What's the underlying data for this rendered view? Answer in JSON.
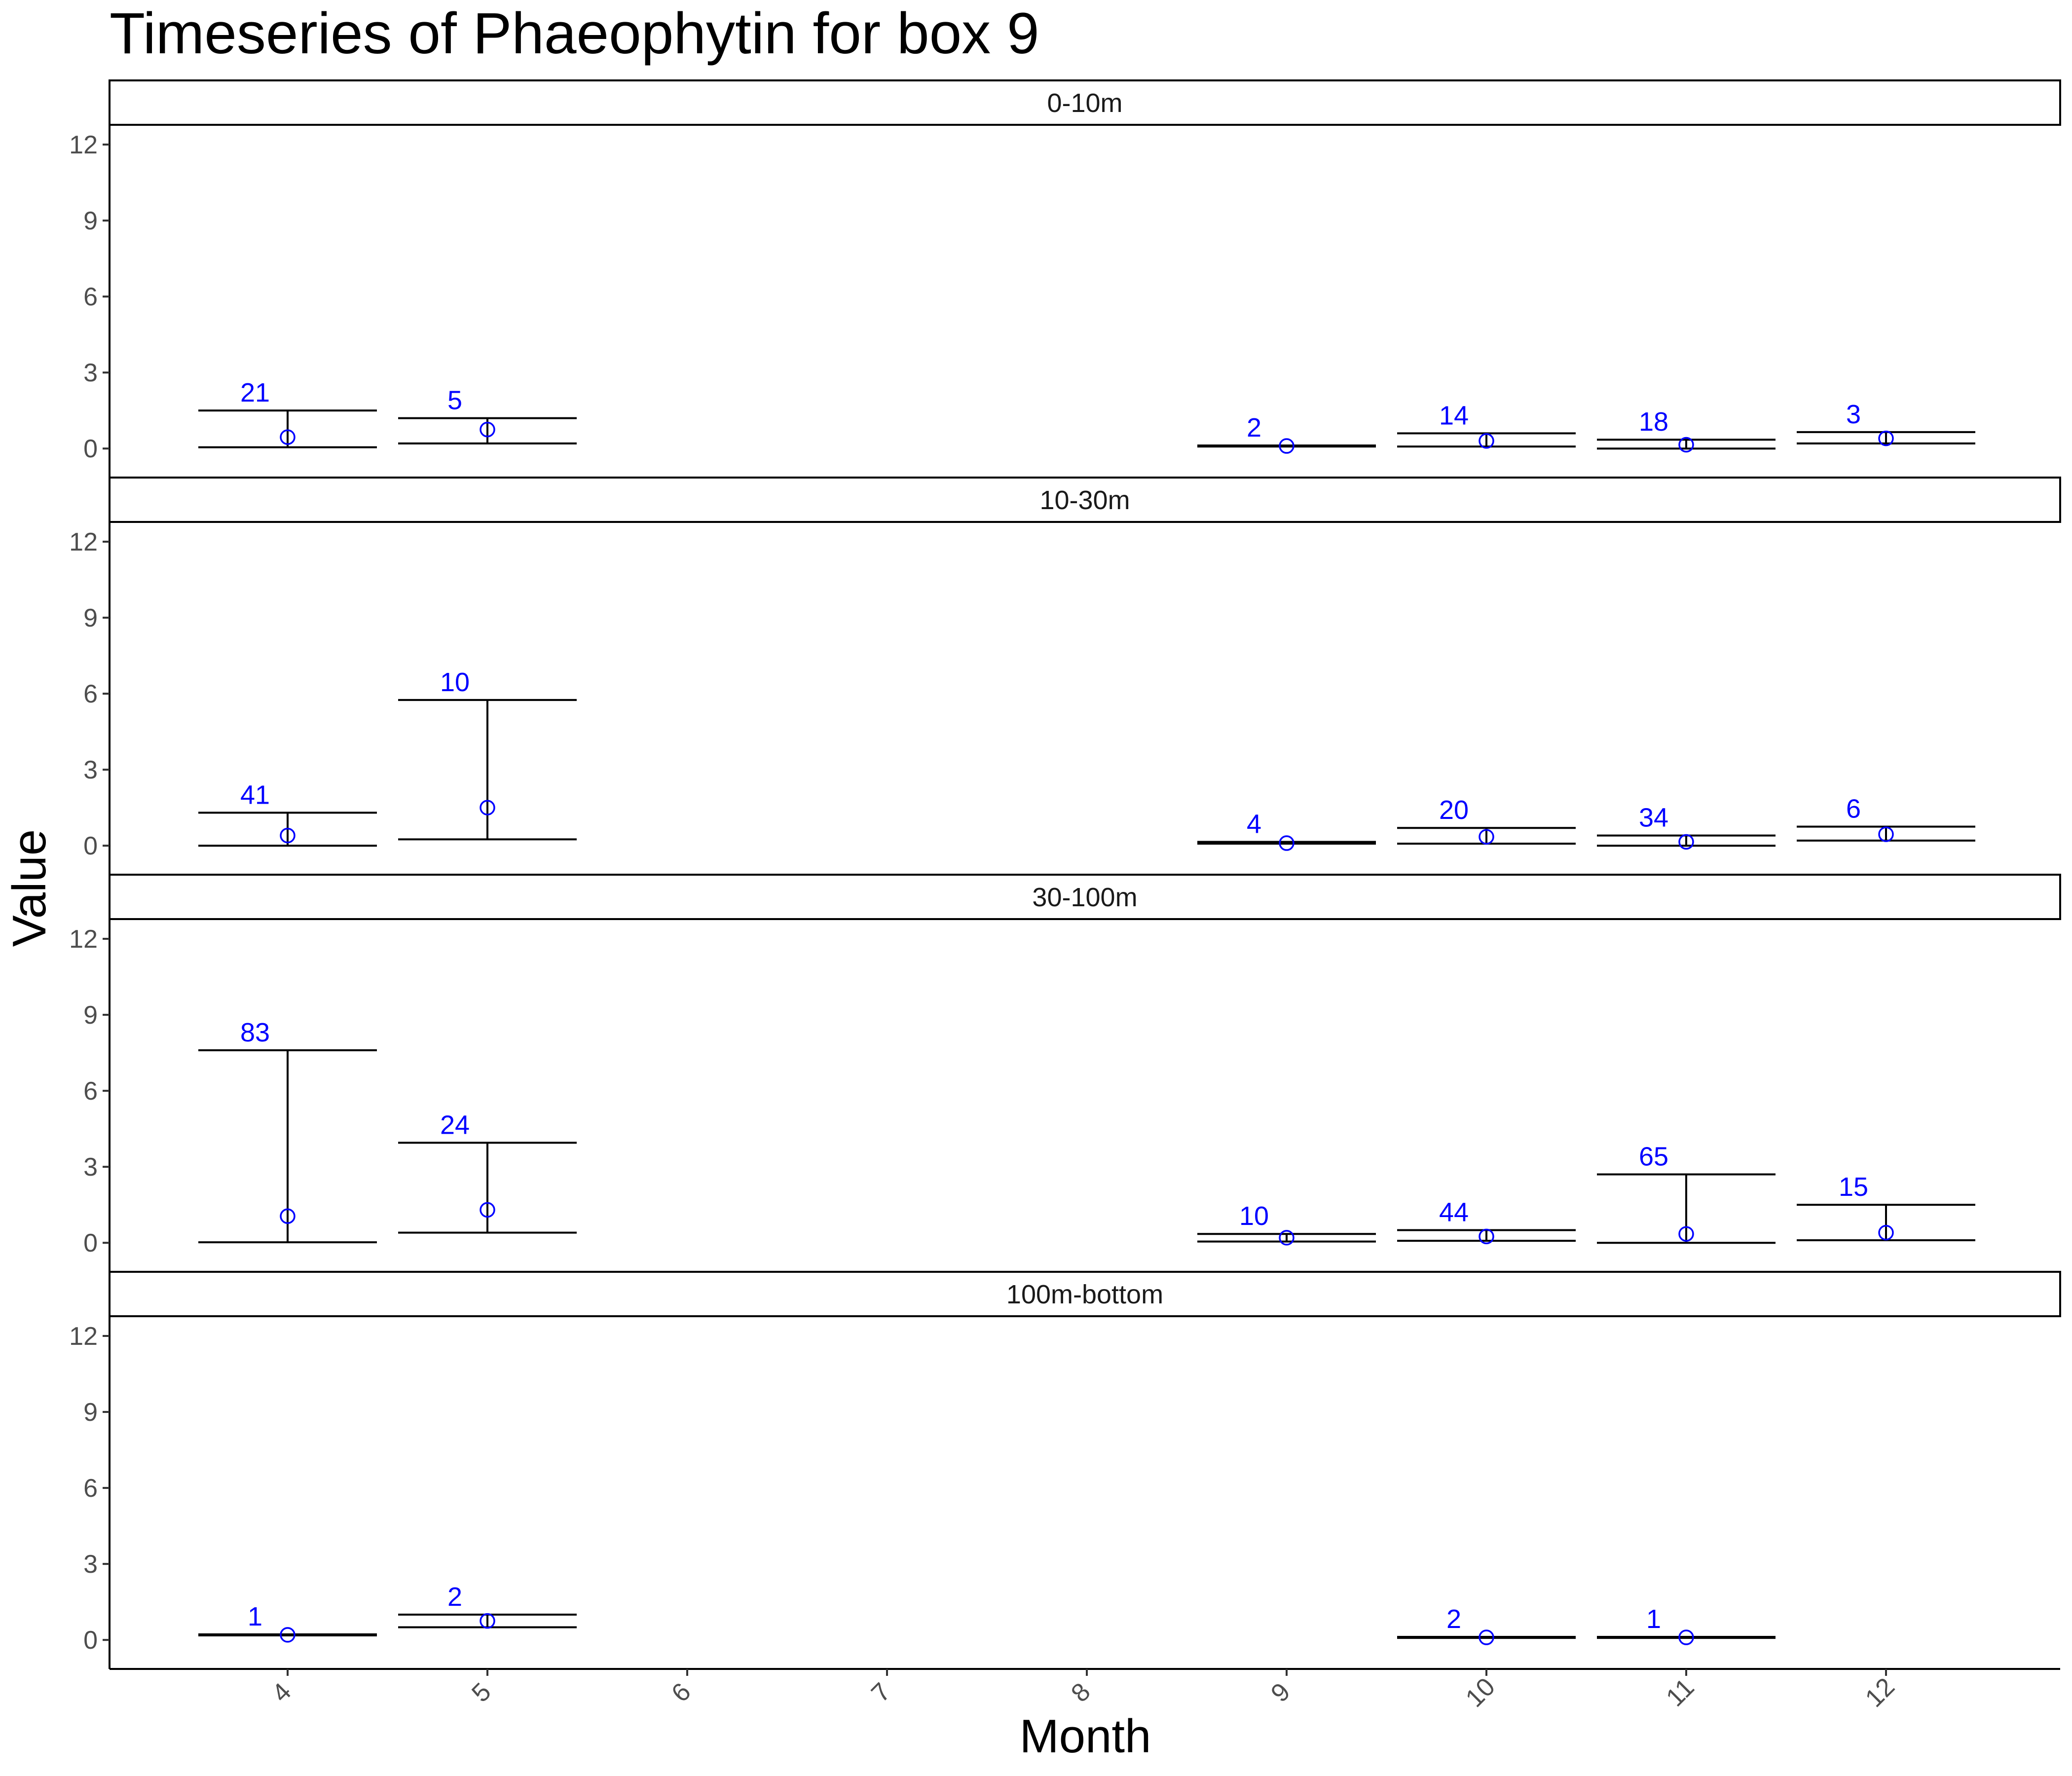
{
  "chart_data": {
    "type": "errorbar",
    "title": "Timeseries of  Phaeophytin  for box  9",
    "xlabel": "Month",
    "ylabel": "Value",
    "x_ticks": [
      "4",
      "5",
      "6",
      "7",
      "8",
      "9",
      "10",
      "11",
      "12"
    ],
    "y_ticks": [
      "0",
      "3",
      "6",
      "9",
      "12"
    ],
    "ylim": [
      -0.6,
      12
    ],
    "grid": false,
    "point_color": "#0000ff",
    "label_color": "#0000ff",
    "panels": [
      {
        "label": "0-10m",
        "points": [
          {
            "month": 4,
            "mean": 0.45,
            "low": 0.05,
            "high": 1.5,
            "n": "21"
          },
          {
            "month": 5,
            "mean": 0.75,
            "low": 0.2,
            "high": 1.2,
            "n": "5"
          },
          {
            "month": 9,
            "mean": 0.1,
            "low": 0.08,
            "high": 0.12,
            "n": "2"
          },
          {
            "month": 10,
            "mean": 0.3,
            "low": 0.08,
            "high": 0.6,
            "n": "14"
          },
          {
            "month": 11,
            "mean": 0.15,
            "low": 0.0,
            "high": 0.35,
            "n": "18"
          },
          {
            "month": 12,
            "mean": 0.4,
            "low": 0.2,
            "high": 0.65,
            "n": "3"
          }
        ]
      },
      {
        "label": "10-30m",
        "points": [
          {
            "month": 4,
            "mean": 0.4,
            "low": 0.0,
            "high": 1.3,
            "n": "41"
          },
          {
            "month": 5,
            "mean": 1.5,
            "low": 0.25,
            "high": 5.75,
            "n": "10"
          },
          {
            "month": 9,
            "mean": 0.1,
            "low": 0.08,
            "high": 0.15,
            "n": "4"
          },
          {
            "month": 10,
            "mean": 0.35,
            "low": 0.08,
            "high": 0.7,
            "n": "20"
          },
          {
            "month": 11,
            "mean": 0.15,
            "low": 0.0,
            "high": 0.4,
            "n": "34"
          },
          {
            "month": 12,
            "mean": 0.45,
            "low": 0.2,
            "high": 0.75,
            "n": "6"
          }
        ]
      },
      {
        "label": "30-100m",
        "points": [
          {
            "month": 4,
            "mean": 1.05,
            "low": 0.02,
            "high": 7.6,
            "n": "83"
          },
          {
            "month": 5,
            "mean": 1.3,
            "low": 0.4,
            "high": 3.95,
            "n": "24"
          },
          {
            "month": 9,
            "mean": 0.2,
            "low": 0.05,
            "high": 0.35,
            "n": "10"
          },
          {
            "month": 10,
            "mean": 0.25,
            "low": 0.08,
            "high": 0.5,
            "n": "44"
          },
          {
            "month": 11,
            "mean": 0.35,
            "low": 0.0,
            "high": 2.7,
            "n": "65"
          },
          {
            "month": 12,
            "mean": 0.4,
            "low": 0.1,
            "high": 1.5,
            "n": "15"
          }
        ]
      },
      {
        "label": "100m-bottom",
        "points": [
          {
            "month": 4,
            "mean": 0.2,
            "low": 0.18,
            "high": 0.22,
            "n": "1"
          },
          {
            "month": 5,
            "mean": 0.75,
            "low": 0.5,
            "high": 1.0,
            "n": "2"
          },
          {
            "month": 10,
            "mean": 0.1,
            "low": 0.08,
            "high": 0.12,
            "n": "2"
          },
          {
            "month": 11,
            "mean": 0.1,
            "low": 0.08,
            "high": 0.12,
            "n": "1"
          }
        ]
      }
    ]
  }
}
